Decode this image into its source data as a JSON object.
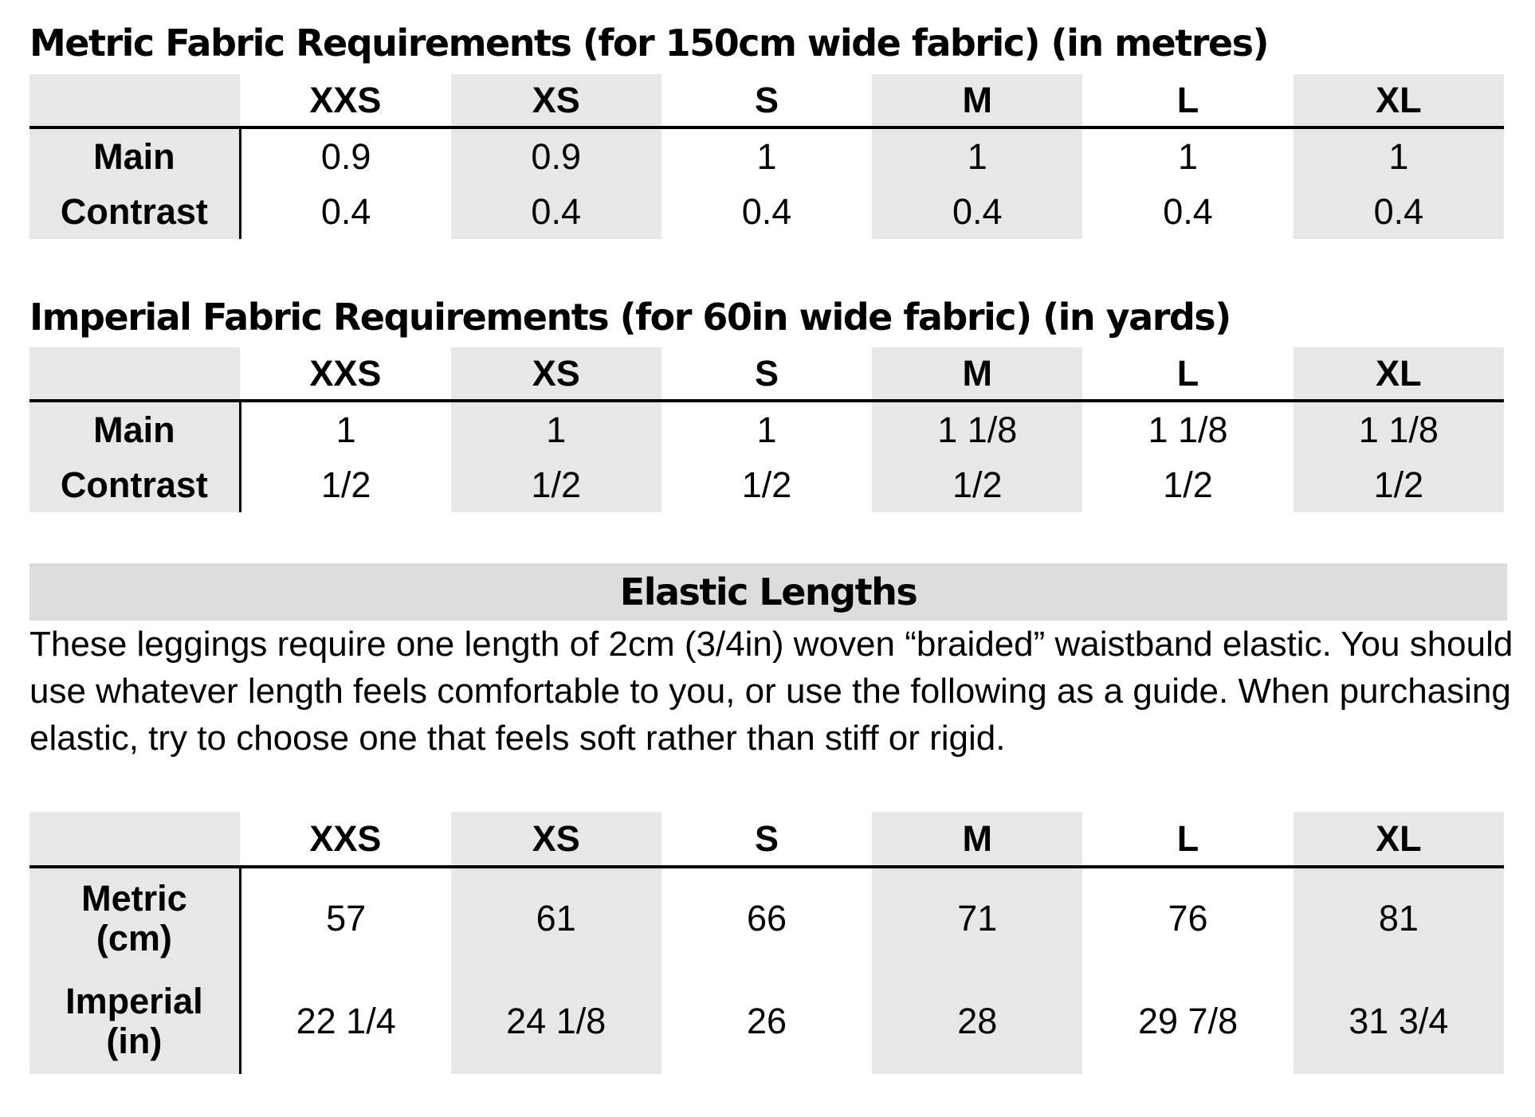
{
  "metric": {
    "title": "Metric Fabric Requirements (for 150cm wide fabric) (in metres)",
    "sizes": [
      "XXS",
      "XS",
      "S",
      "M",
      "L",
      "XL"
    ],
    "rows": [
      {
        "label": "Main",
        "values": [
          "0.9",
          "0.9",
          "1",
          "1",
          "1",
          "1"
        ]
      },
      {
        "label": "Contrast",
        "values": [
          "0.4",
          "0.4",
          "0.4",
          "0.4",
          "0.4",
          "0.4"
        ]
      }
    ]
  },
  "imperial": {
    "title": "Imperial Fabric Requirements (for 60in wide fabric) (in yards)",
    "sizes": [
      "XXS",
      "XS",
      "S",
      "M",
      "L",
      "XL"
    ],
    "rows": [
      {
        "label": "Main",
        "values": [
          "1",
          "1",
          "1",
          "1 1/8",
          "1 1/8",
          "1 1/8"
        ]
      },
      {
        "label": "Contrast",
        "values": [
          "1/2",
          "1/2",
          "1/2",
          "1/2",
          "1/2",
          "1/2"
        ]
      }
    ]
  },
  "elastic": {
    "title": "Elastic Lengths",
    "description": "These leggings require one length of 2cm (3/4in) woven “braided” waistband elastic. You should use whatever length feels comfortable to you, or use the following as a guide. When purchasing elastic, try to choose one that feels soft rather than stiff or rigid.",
    "sizes": [
      "XXS",
      "XS",
      "S",
      "M",
      "L",
      "XL"
    ],
    "rows": [
      {
        "label_line1": "Metric",
        "label_line2": "(cm)",
        "values": [
          "57",
          "61",
          "66",
          "71",
          "76",
          "81"
        ]
      },
      {
        "label_line1": "Imperial",
        "label_line2": "(in)",
        "values": [
          "22 1/4",
          "24 1/8",
          "26",
          "28",
          "29 7/8",
          "31 3/4"
        ]
      }
    ]
  },
  "colors": {
    "shade": "#e6e7e8",
    "bar": "#dcdddf",
    "text": "#000000"
  }
}
